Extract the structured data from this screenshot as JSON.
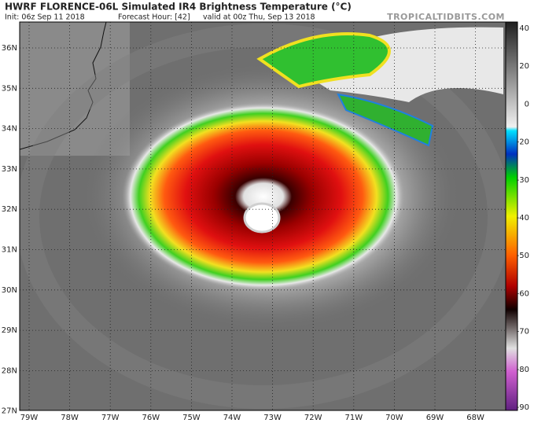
{
  "header": {
    "title": "HWRF FLORENCE-06L Simulated IR4 Brightness Temperature (°C)",
    "init": "Init: 06z Sep 11 2018",
    "forecast_hour": "Forecast Hour: [42]",
    "valid": "valid at 00z Thu, Sep 13 2018",
    "site": "TROPICALTIDBITS.COM"
  },
  "map": {
    "lat_labels": [
      "36N",
      "35N",
      "34N",
      "33N",
      "32N",
      "31N",
      "30N",
      "29N",
      "28N",
      "27N"
    ],
    "lon_labels": [
      "79W",
      "78W",
      "77W",
      "76W",
      "75W",
      "74W",
      "73W",
      "72W",
      "71W",
      "70W",
      "69W",
      "68W"
    ]
  },
  "colorbar": {
    "labels": [
      "40",
      "20",
      "0",
      "-20",
      "-30",
      "-40",
      "-50",
      "-60",
      "-70",
      "-80",
      "-90"
    ]
  }
}
